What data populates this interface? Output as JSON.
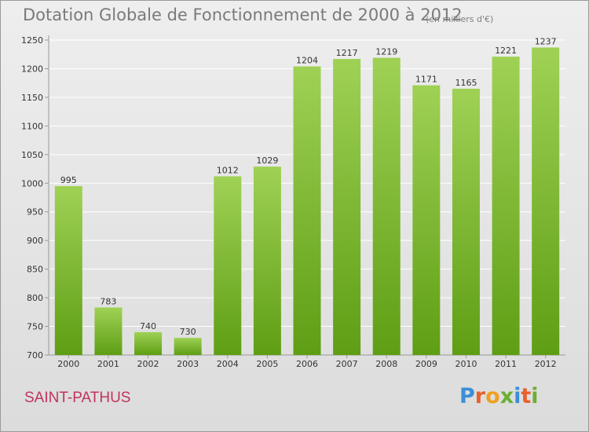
{
  "header": {
    "title": "Dotation Globale de Fonctionnement de 2000 à 2012",
    "unit": "(en milliers d'€)"
  },
  "footer": {
    "commune": "SAINT-PATHUS",
    "logo_text": "Proxiti",
    "logo_colors": [
      "#3a8fd6",
      "#e8612c",
      "#f0a020",
      "#6ab033",
      "#3a8fd6",
      "#e8612c",
      "#6ab033"
    ]
  },
  "colors": {
    "bar_light": "#9fd155",
    "bar_dark": "#5e9e14",
    "grid": "#ffffff",
    "axis_text": "#333333"
  },
  "chart_data": {
    "type": "bar",
    "title": "Dotation Globale de Fonctionnement de 2000 à 2012",
    "xlabel": "",
    "ylabel": "",
    "categories": [
      "2000",
      "2001",
      "2002",
      "2003",
      "2004",
      "2005",
      "2006",
      "2007",
      "2008",
      "2009",
      "2010",
      "2011",
      "2012"
    ],
    "values": [
      995,
      783,
      740,
      730,
      1012,
      1029,
      1204,
      1217,
      1219,
      1171,
      1165,
      1221,
      1237
    ],
    "ylim": [
      700,
      1250
    ],
    "yticks": [
      700,
      750,
      800,
      850,
      900,
      950,
      1000,
      1050,
      1100,
      1150,
      1200,
      1250
    ],
    "grid": true
  }
}
